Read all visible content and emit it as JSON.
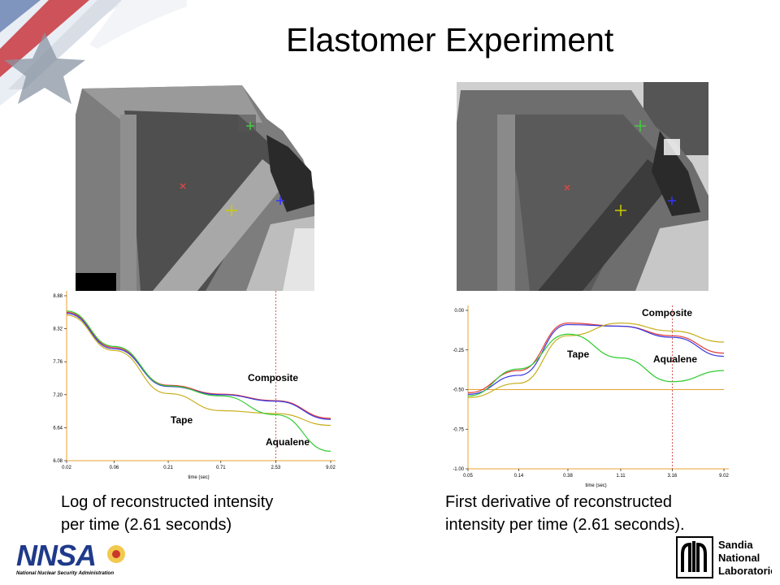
{
  "title": "Elastomer Experiment",
  "captions": {
    "left": "Log of reconstructed intensity\nper time (2.61 seconds)",
    "right": "First derivative of reconstructed\nintensity per time (2.61 seconds)."
  },
  "logos": {
    "nnsa": {
      "mark": "NNSA",
      "subtitle": "National Nuclear Security Administration"
    },
    "sandia": {
      "line1": "Sandia",
      "line2": "National",
      "line3": "Laboratories"
    }
  },
  "colors": {
    "composite": "#3a3ae0",
    "tape": "#c8b020",
    "aqualene": "#33cc33",
    "other": "#e03a3a",
    "marker_line": "#cc3333",
    "threshold": "#e8a030"
  },
  "chart_data": [
    {
      "type": "line",
      "xlabel": "time (sec)",
      "ylabel": "",
      "x_tick_labels": [
        "0.02",
        "0.06",
        "0.21",
        "0.71",
        "2.53",
        "9.02"
      ],
      "y_tick_labels": [
        "8.88",
        "8.32",
        "7.76",
        "7.20",
        "6.64",
        "6.08"
      ],
      "ylim": [
        6.08,
        8.88
      ],
      "log_x": true,
      "x": [
        0.02,
        0.06,
        0.21,
        0.71,
        2.53,
        9.02
      ],
      "vertical_marker_x": 2.53,
      "annotations": [
        "Composite",
        "Tape",
        "Aqualene"
      ],
      "series": [
        {
          "color": "red",
          "values": [
            8.6,
            8.0,
            7.36,
            7.21,
            7.1,
            6.8
          ]
        },
        {
          "color": "blue",
          "values": [
            8.58,
            7.98,
            7.34,
            7.2,
            7.09,
            6.78
          ]
        },
        {
          "color": "yellow",
          "values": [
            8.55,
            7.95,
            7.22,
            6.93,
            6.88,
            6.68
          ]
        },
        {
          "color": "green",
          "values": [
            8.62,
            8.02,
            7.35,
            7.18,
            6.86,
            6.24
          ]
        }
      ]
    },
    {
      "type": "line",
      "xlabel": "time (sec)",
      "ylabel": "",
      "x_tick_labels": [
        "0.05",
        "0.14",
        "0.38",
        "1.11",
        "3.16",
        "9.02"
      ],
      "y_tick_labels": [
        "0.00",
        "-0.25",
        "-0.50",
        "-0.75",
        "-1.00"
      ],
      "ylim": [
        -1.0,
        0.0
      ],
      "log_x": true,
      "x": [
        0.05,
        0.14,
        0.38,
        1.11,
        3.16,
        9.02
      ],
      "vertical_marker_x": 3.16,
      "threshold_y": -0.5,
      "annotations": [
        "Composite",
        "Tape",
        "Aqualene"
      ],
      "series": [
        {
          "color": "red",
          "values": [
            -0.52,
            -0.38,
            -0.08,
            -0.1,
            -0.16,
            -0.27
          ]
        },
        {
          "color": "blue",
          "values": [
            -0.53,
            -0.41,
            -0.09,
            -0.1,
            -0.17,
            -0.29
          ]
        },
        {
          "color": "yellow",
          "values": [
            -0.55,
            -0.46,
            -0.16,
            -0.08,
            -0.13,
            -0.2
          ]
        },
        {
          "color": "green",
          "values": [
            -0.54,
            -0.37,
            -0.15,
            -0.3,
            -0.45,
            -0.38
          ]
        }
      ]
    }
  ]
}
